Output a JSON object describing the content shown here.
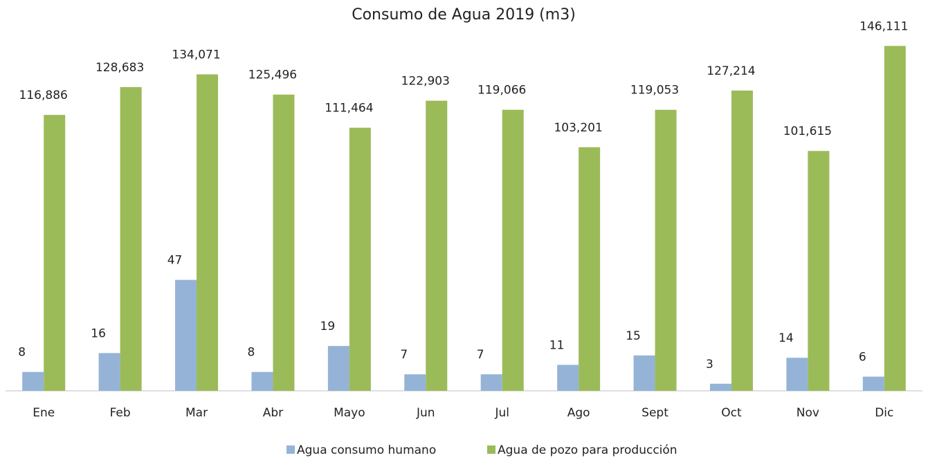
{
  "chart_data": {
    "type": "bar",
    "title": "Consumo de Agua 2019 (m3)",
    "categories": [
      "Ene",
      "Feb",
      "Mar",
      "Abr",
      "Mayo",
      "Jun",
      "Jul",
      "Ago",
      "Sept",
      "Oct",
      "Nov",
      "Dic"
    ],
    "series": [
      {
        "name": "Agua consumo humano",
        "color": "#95b3d7",
        "axis": "y2",
        "values": [
          8,
          16,
          47,
          8,
          19,
          7,
          7,
          11,
          15,
          3,
          14,
          6
        ]
      },
      {
        "name": "Agua de pozo para producción",
        "color": "#9bbb59",
        "values": [
          116886,
          128683,
          134071,
          125496,
          111464,
          122903,
          119066,
          103201,
          119053,
          127214,
          101615,
          146111
        ],
        "value_labels": [
          "116,886",
          "128,683",
          "134,071",
          "125,496",
          "111,464",
          "122,903",
          "119,066",
          "103,201",
          "119,053",
          "127,214",
          "101,615",
          "146,111"
        ]
      }
    ],
    "ylim": [
      0,
      160000
    ],
    "y2lim": [
      0,
      160
    ],
    "legend": "bottom"
  }
}
